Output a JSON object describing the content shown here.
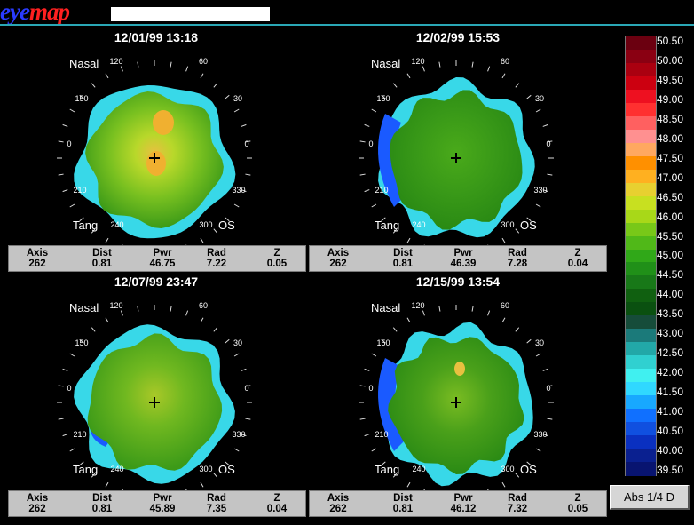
{
  "header": {
    "logo_part1": "eye",
    "logo_part2": "map",
    "patient_name": ""
  },
  "maps": [
    {
      "date": "12/01/99 13:18",
      "nasal": "Nasal",
      "tang": "Tang",
      "eye": "OS",
      "info": {
        "axis_label": "Axis",
        "axis": "262",
        "dist_label": "Dist",
        "dist": "0.81",
        "pwr_label": "Pwr",
        "pwr": "46.75",
        "rad_label": "Rad",
        "rad": "7.22",
        "z_label": "Z",
        "z": "0.05"
      }
    },
    {
      "date": "12/02/99 15:53",
      "nasal": "Nasal",
      "tang": "Tang",
      "eye": "OS",
      "info": {
        "axis_label": "Axis",
        "axis": "262",
        "dist_label": "Dist",
        "dist": "0.81",
        "pwr_label": "Pwr",
        "pwr": "46.39",
        "rad_label": "Rad",
        "rad": "7.28",
        "z_label": "Z",
        "z": "0.04"
      }
    },
    {
      "date": "12/07/99 23:47",
      "nasal": "Nasal",
      "tang": "Tang",
      "eye": "OS",
      "info": {
        "axis_label": "Axis",
        "axis": "262",
        "dist_label": "Dist",
        "dist": "0.81",
        "pwr_label": "Pwr",
        "pwr": "45.89",
        "rad_label": "Rad",
        "rad": "7.35",
        "z_label": "Z",
        "z": "0.04"
      }
    },
    {
      "date": "12/15/99 13:54",
      "nasal": "Nasal",
      "tang": "Tang",
      "eye": "OS",
      "info": {
        "axis_label": "Axis",
        "axis": "262",
        "dist_label": "Dist",
        "dist": "0.81",
        "pwr_label": "Pwr",
        "pwr": "46.12",
        "rad_label": "Rad",
        "rad": "7.32",
        "z_label": "Z",
        "z": "0.05"
      }
    }
  ],
  "degree_labels": [
    "120",
    "60",
    "150",
    "30",
    "0",
    "0",
    "210",
    "330",
    "240",
    "300"
  ],
  "scale": {
    "labels": [
      "50.50",
      "50.00",
      "49.50",
      "49.00",
      "48.50",
      "48.00",
      "47.50",
      "47.00",
      "46.50",
      "46.00",
      "45.50",
      "45.00",
      "44.50",
      "44.00",
      "43.50",
      "43.00",
      "42.50",
      "42.00",
      "41.50",
      "41.00",
      "40.50",
      "40.00",
      "39.50"
    ],
    "colors": [
      "#6b0010",
      "#8a0012",
      "#aa0010",
      "#cc0010",
      "#ee1020",
      "#ff3030",
      "#ff6060",
      "#ff9090",
      "#ffa860",
      "#ff9000",
      "#ffb020",
      "#e8d030",
      "#c8e020",
      "#a8d818",
      "#78c818",
      "#50b818",
      "#30a818",
      "#209018",
      "#187818",
      "#106010",
      "#0a5010",
      "#164c3a",
      "#1b7a7a",
      "#22a8a8",
      "#30d0d0",
      "#40f0f0",
      "#30d8ff",
      "#18a8ff",
      "#1070ff",
      "#1050e0",
      "#0a30c0",
      "#0a2090",
      "#081470"
    ]
  },
  "abs_button": "Abs 1/4 D"
}
